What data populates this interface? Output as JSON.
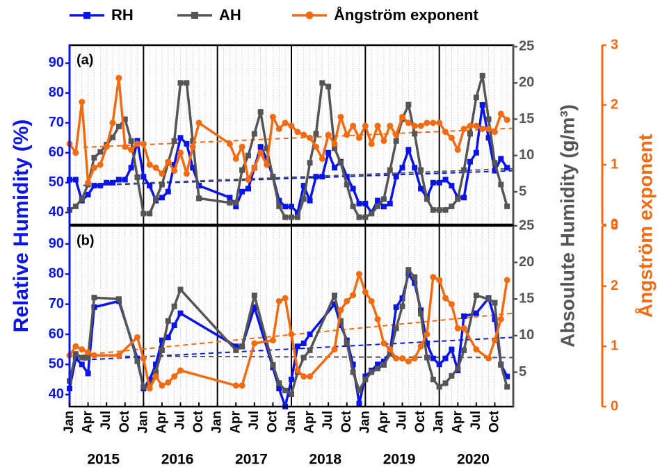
{
  "chart_data": [
    {
      "type": "line",
      "label": "(a)",
      "ylabel": "Relative Humidity (%)",
      "y2label": "Absoulute Humidity (g/m³)",
      "y3label": "Ångström exponent",
      "xlim": [
        "2015-01",
        "2021-01"
      ],
      "ylim": [
        36,
        96
      ],
      "yticks": [
        40,
        50,
        60,
        70,
        80,
        90
      ],
      "y2lim": [
        0.5,
        25.2
      ],
      "y2ticks": [
        5,
        10,
        15,
        20,
        25
      ],
      "y3lim": [
        0,
        3
      ],
      "y3ticks": [
        0,
        1,
        2,
        3
      ],
      "x": [
        "2015-01",
        "2015-02",
        "2015-03",
        "2015-04",
        "2015-05",
        "2015-06",
        "2015-07",
        "2015-08",
        "2015-09",
        "2015-10",
        "2015-11",
        "2015-12",
        "2016-01",
        "2016-02",
        "2016-03",
        "2016-04",
        "2016-05",
        "2016-06",
        "2016-07",
        "2016-08",
        "2016-09",
        "2016-10",
        "2017-03",
        "2017-04",
        "2017-05",
        "2017-06",
        "2017-07",
        "2017-08",
        "2017-09",
        "2017-10",
        "2017-11",
        "2017-12",
        "2018-01",
        "2018-02",
        "2018-03",
        "2018-04",
        "2018-05",
        "2018-06",
        "2018-07",
        "2018-08",
        "2018-09",
        "2018-10",
        "2018-11",
        "2018-12",
        "2019-01",
        "2019-02",
        "2019-03",
        "2019-04",
        "2019-05",
        "2019-06",
        "2019-07",
        "2019-08",
        "2019-09",
        "2019-10",
        "2019-11",
        "2019-12",
        "2020-01",
        "2020-02",
        "2020-03",
        "2020-04",
        "2020-05",
        "2020-06",
        "2020-07",
        "2020-08",
        "2020-09",
        "2020-10",
        "2020-11",
        "2020-12"
      ],
      "series": [
        {
          "name": "RH",
          "color": "#0a14e6",
          "marker": "square",
          "axis": "y",
          "trend": [
            49,
            54
          ],
          "values": [
            51,
            51,
            44,
            46,
            49,
            49,
            50,
            50,
            51,
            51,
            55,
            64,
            52,
            49,
            44,
            45,
            47,
            56,
            65,
            63,
            55,
            49,
            45,
            42,
            47,
            48,
            55,
            62,
            58,
            52,
            44,
            42,
            42,
            40,
            49,
            44,
            52,
            52,
            60,
            55,
            57,
            52,
            48,
            43,
            43,
            40,
            44,
            42,
            43,
            52,
            55,
            61,
            55,
            48,
            45,
            50,
            50,
            51,
            49,
            45,
            45,
            57,
            60,
            76,
            65,
            54,
            58,
            55
          ]
        },
        {
          "name": "AH",
          "color": "#555555",
          "marker": "square",
          "axis": "y2",
          "trend": [
            5.9,
            8.2
          ],
          "values": [
            2.5,
            3,
            4,
            6,
            9.7,
            10.5,
            11.5,
            12.5,
            14,
            15,
            12,
            7,
            2,
            2,
            4,
            6,
            9,
            12,
            20,
            20,
            12,
            4.1,
            3.5,
            3.5,
            8,
            10,
            13,
            16,
            11,
            7,
            3,
            1.5,
            1.5,
            1.5,
            4,
            9,
            13,
            20,
            19.5,
            11,
            9,
            6,
            3,
            1.5,
            1.5,
            2,
            3,
            4,
            8,
            12,
            15,
            17,
            13,
            8,
            4,
            2.5,
            2.5,
            2.5,
            3,
            4,
            8,
            13,
            18,
            21,
            15,
            9,
            6,
            3
          ]
        },
        {
          "name": "Ångström exponent",
          "color": "#f26b12",
          "marker": "circle",
          "axis": "y3",
          "trend": [
            1.29,
            1.61
          ],
          "values": [
            1.35,
            1.2,
            2.05,
            0.7,
            0.95,
            1.0,
            1.3,
            1.7,
            2.45,
            1.3,
            1.25,
            1.35,
            1.35,
            1.0,
            0.95,
            0.85,
            1.05,
            0.9,
            1.2,
            0.85,
            1.3,
            1.7,
            1.35,
            1.1,
            1.3,
            0.75,
            0.95,
            1.2,
            1.0,
            1.8,
            1.6,
            1.7,
            1.65,
            1.55,
            1.5,
            1.45,
            1.3,
            1.1,
            1.5,
            1.35,
            1.8,
            1.5,
            1.65,
            1.45,
            1.65,
            1.35,
            1.65,
            1.4,
            1.65,
            1.5,
            1.8,
            1.7,
            1.65,
            1.65,
            1.7,
            1.7,
            1.7,
            1.55,
            1.45,
            1.25,
            1.6,
            1.65,
            1.65,
            1.6,
            1.6,
            1.55,
            1.85,
            1.75
          ]
        }
      ]
    },
    {
      "type": "line",
      "label": "(b)",
      "xlim": [
        "2015-01",
        "2021-01"
      ],
      "ylim": [
        36,
        96
      ],
      "yticks": [
        40,
        50,
        60,
        70,
        80,
        90
      ],
      "y2lim": [
        0.3,
        25
      ],
      "y2ticks": [
        5,
        10,
        15,
        20,
        25
      ],
      "y3lim": [
        0,
        3
      ],
      "y3ticks": [
        0,
        1,
        2,
        3
      ],
      "xticks": [
        {
          "value": "2015-01",
          "label": "Jan"
        },
        {
          "value": "2015-04",
          "label": "Apr"
        },
        {
          "value": "2015-07",
          "label": "Jul"
        },
        {
          "value": "2015-10",
          "label": "Oct"
        },
        {
          "value": "2016-01",
          "label": "Jan"
        },
        {
          "value": "2016-04",
          "label": "Apr"
        },
        {
          "value": "2016-07",
          "label": "Jul"
        },
        {
          "value": "2016-10",
          "label": "Oct"
        },
        {
          "value": "2017-01",
          "label": "Jan"
        },
        {
          "value": "2017-04",
          "label": "Apr"
        },
        {
          "value": "2017-07",
          "label": "Jul"
        },
        {
          "value": "2017-10",
          "label": "Oct"
        },
        {
          "value": "2018-01",
          "label": "Jan"
        },
        {
          "value": "2018-04",
          "label": "Apr"
        },
        {
          "value": "2018-07",
          "label": "Jul"
        },
        {
          "value": "2018-10",
          "label": "Oct"
        },
        {
          "value": "2019-01",
          "label": "Jan"
        },
        {
          "value": "2019-04",
          "label": "Apr"
        },
        {
          "value": "2019-07",
          "label": "Jul"
        },
        {
          "value": "2019-10",
          "label": "Oct"
        },
        {
          "value": "2020-01",
          "label": "Jan"
        },
        {
          "value": "2020-04",
          "label": "Apr"
        },
        {
          "value": "2020-07",
          "label": "Jul"
        },
        {
          "value": "2020-10",
          "label": "Oct"
        }
      ],
      "years": [
        2015,
        2016,
        2017,
        2018,
        2019,
        2020
      ],
      "x": [
        "2015-01",
        "2015-02",
        "2015-03",
        "2015-04",
        "2015-05",
        "2015-09",
        "2015-12",
        "2016-01",
        "2016-02",
        "2016-03",
        "2016-04",
        "2016-05",
        "2016-06",
        "2016-07",
        "2017-04",
        "2017-05",
        "2017-07",
        "2017-10",
        "2017-11",
        "2017-12",
        "2018-01",
        "2018-02",
        "2018-03",
        "2018-04",
        "2018-08",
        "2018-09",
        "2018-10",
        "2018-11",
        "2018-12",
        "2019-01",
        "2019-02",
        "2019-03",
        "2019-04",
        "2019-05",
        "2019-06",
        "2019-07",
        "2019-08",
        "2019-09",
        "2019-10",
        "2019-11",
        "2019-12",
        "2020-01",
        "2020-02",
        "2020-03",
        "2020-04",
        "2020-05",
        "2020-07",
        "2020-09",
        "2020-10",
        "2020-11",
        "2020-12"
      ],
      "series": [
        {
          "color": "#0a14e6",
          "marker": "square",
          "axis": "y",
          "trend": [
            51.5,
            59
          ],
          "values": [
            42,
            52,
            50,
            47,
            69,
            71,
            52,
            42,
            45,
            50,
            58,
            59,
            63,
            67,
            56,
            56,
            69,
            49,
            42,
            36,
            45,
            56,
            57,
            60,
            70,
            63,
            58,
            50,
            37,
            46,
            48,
            50,
            51,
            54,
            69,
            72,
            80,
            77,
            68,
            57,
            52,
            50,
            52,
            55,
            48,
            66,
            67,
            72,
            65,
            50,
            46
          ]
        },
        {
          "color": "#555555",
          "marker": "square",
          "axis": "y2",
          "trend": [
            7.2,
            7.0
          ],
          "values": [
            3.8,
            7.5,
            7,
            7,
            15.2,
            15,
            6.5,
            3,
            3,
            5,
            8,
            12,
            14,
            16.3,
            8,
            8.5,
            15.5,
            6,
            3.5,
            2.5,
            2,
            5,
            7,
            8,
            15.5,
            12,
            9,
            5,
            2.5,
            4,
            5,
            5.5,
            6,
            7.5,
            11,
            14,
            19,
            18,
            13,
            7,
            4,
            3,
            3.5,
            4.5,
            5.5,
            8,
            15.5,
            15,
            14.5,
            6,
            3
          ]
        },
        {
          "color": "#f26b12",
          "marker": "circle",
          "axis": "y3",
          "trend": [
            0.86,
            1.55
          ],
          "values": [
            0.85,
            1.0,
            0.95,
            0.9,
            0.85,
            0.85,
            1.15,
            0.8,
            0.3,
            0.5,
            0.35,
            0.4,
            0.5,
            0.6,
            0.35,
            0.35,
            1.05,
            1.1,
            1.75,
            1.8,
            1.2,
            0.6,
            0.5,
            0.5,
            0.95,
            1.6,
            1.75,
            1.85,
            2.2,
            1.9,
            1.75,
            1.45,
            1.05,
            0.95,
            0.8,
            0.8,
            0.75,
            0.8,
            1.0,
            1.2,
            2.15,
            2.1,
            1.8,
            1.7,
            1.3,
            1.3,
            0.95,
            0.8,
            1.1,
            1.45,
            2.1
          ]
        }
      ]
    }
  ]
}
